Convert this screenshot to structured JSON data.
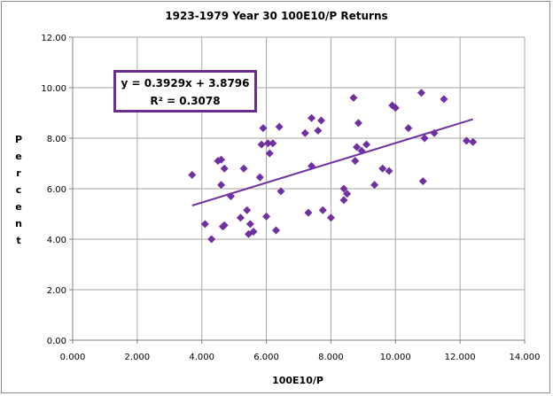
{
  "chart_data": {
    "type": "scatter",
    "title": "1923-1979 Year 30 100E10/P Returns",
    "xlabel": "100E10/P",
    "ylabel": "Percent",
    "xlim": [
      0,
      14
    ],
    "ylim": [
      0,
      12
    ],
    "x_ticks": [
      "0.000",
      "2.000",
      "4.000",
      "6.000",
      "8.000",
      "10.000",
      "12.000",
      "14.000"
    ],
    "y_ticks": [
      "0.00",
      "2.00",
      "4.00",
      "6.00",
      "8.00",
      "10.00",
      "12.00"
    ],
    "grid": true,
    "marker_color": "#7030a0",
    "trendline": {
      "slope": 0.3929,
      "intercept": 3.8796,
      "x_range": [
        3.7,
        12.4
      ],
      "color": "#7030a0"
    },
    "equation": "y = 0.3929x + 3.8796",
    "r_squared_label": "R² = 0.3078",
    "points": [
      [
        3.7,
        6.55
      ],
      [
        4.1,
        4.6
      ],
      [
        4.3,
        4.0
      ],
      [
        4.5,
        7.1
      ],
      [
        4.6,
        7.15
      ],
      [
        4.6,
        6.15
      ],
      [
        4.65,
        4.5
      ],
      [
        4.7,
        6.8
      ],
      [
        4.7,
        4.55
      ],
      [
        4.9,
        5.7
      ],
      [
        5.2,
        4.85
      ],
      [
        5.3,
        6.8
      ],
      [
        5.4,
        5.15
      ],
      [
        5.45,
        4.2
      ],
      [
        5.5,
        4.6
      ],
      [
        5.6,
        4.3
      ],
      [
        5.8,
        6.45
      ],
      [
        5.85,
        7.75
      ],
      [
        5.9,
        8.4
      ],
      [
        6.0,
        4.9
      ],
      [
        6.05,
        7.8
      ],
      [
        6.1,
        7.4
      ],
      [
        6.2,
        7.8
      ],
      [
        6.3,
        4.35
      ],
      [
        6.4,
        8.45
      ],
      [
        6.45,
        5.9
      ],
      [
        7.2,
        8.2
      ],
      [
        7.3,
        5.05
      ],
      [
        7.4,
        6.9
      ],
      [
        7.4,
        8.8
      ],
      [
        7.6,
        8.3
      ],
      [
        7.7,
        8.7
      ],
      [
        7.75,
        5.15
      ],
      [
        8.0,
        4.85
      ],
      [
        8.4,
        6.0
      ],
      [
        8.4,
        5.55
      ],
      [
        8.5,
        5.8
      ],
      [
        8.7,
        9.6
      ],
      [
        8.75,
        7.1
      ],
      [
        8.8,
        7.65
      ],
      [
        8.85,
        8.6
      ],
      [
        8.95,
        7.5
      ],
      [
        9.1,
        7.75
      ],
      [
        9.35,
        6.15
      ],
      [
        9.6,
        6.8
      ],
      [
        9.8,
        6.7
      ],
      [
        9.9,
        9.3
      ],
      [
        10.0,
        9.2
      ],
      [
        10.4,
        8.4
      ],
      [
        10.8,
        9.8
      ],
      [
        10.85,
        6.3
      ],
      [
        10.9,
        8.0
      ],
      [
        11.2,
        8.2
      ],
      [
        11.5,
        9.55
      ],
      [
        12.2,
        7.9
      ],
      [
        12.4,
        7.85
      ]
    ]
  }
}
